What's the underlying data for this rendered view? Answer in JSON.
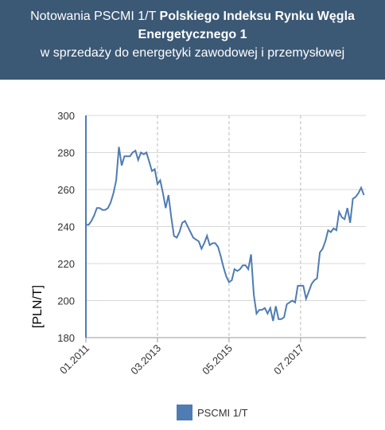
{
  "header": {
    "title_prefix": "Notowania PSCMI 1/T",
    "title_bold": "Polskiego Indeksu Rynku Węgla Energetycznego 1",
    "subtitle": "w sprzedaży do energetyki zawodowej i przemysłowej"
  },
  "chart_data": {
    "type": "line",
    "y_label": "[PLN/T]",
    "x": [
      "01.2011",
      "02.2011",
      "03.2011",
      "04.2011",
      "05.2011",
      "06.2011",
      "07.2011",
      "08.2011",
      "09.2011",
      "10.2011",
      "11.2011",
      "12.2011",
      "01.2012",
      "02.2012",
      "03.2012",
      "04.2012",
      "05.2012",
      "06.2012",
      "07.2012",
      "08.2012",
      "09.2012",
      "10.2012",
      "11.2012",
      "12.2012",
      "01.2013",
      "02.2013",
      "03.2013",
      "04.2013",
      "05.2013",
      "06.2013",
      "07.2013",
      "08.2013",
      "09.2013",
      "10.2013",
      "11.2013",
      "12.2013",
      "01.2014",
      "02.2014",
      "03.2014",
      "04.2014",
      "05.2014",
      "06.2014",
      "07.2014",
      "08.2014",
      "09.2014",
      "10.2014",
      "11.2014",
      "12.2014",
      "01.2015",
      "02.2015",
      "03.2015",
      "04.2015",
      "05.2015",
      "06.2015",
      "07.2015",
      "08.2015",
      "09.2015",
      "10.2015",
      "11.2015",
      "12.2015",
      "01.2016",
      "02.2016",
      "03.2016",
      "04.2016",
      "05.2016",
      "06.2016",
      "07.2016",
      "08.2016",
      "09.2016",
      "10.2016",
      "11.2016",
      "12.2016",
      "01.2017",
      "02.2017",
      "03.2017",
      "04.2017",
      "05.2017",
      "06.2017",
      "07.2017",
      "08.2017",
      "09.2017",
      "10.2017",
      "11.2017",
      "12.2017",
      "01.2018",
      "02.2018",
      "03.2018",
      "04.2018",
      "05.2018",
      "06.2018",
      "07.2018",
      "08.2018",
      "09.2018",
      "10.2018",
      "11.2018",
      "12.2018",
      "01.2019",
      "02.2019",
      "03.2019",
      "04.2019",
      "05.2019",
      "06.2019"
    ],
    "series": [
      {
        "name": "PSCMI 1/T",
        "color": "#4f7cb2",
        "values": [
          241,
          241,
          243,
          246,
          250,
          250,
          249,
          249,
          250,
          253,
          258,
          265,
          283,
          273,
          278,
          278,
          278,
          280,
          281,
          276,
          280,
          279,
          280,
          275,
          270,
          271,
          263,
          265,
          258,
          250,
          257,
          245,
          235,
          234,
          237,
          242,
          243,
          240,
          237,
          234,
          233,
          232,
          228,
          231,
          235,
          230,
          231,
          231,
          229,
          224,
          218,
          213,
          210,
          211,
          217,
          216,
          217,
          219,
          219,
          217,
          225,
          203,
          193,
          195,
          195,
          196,
          193,
          196,
          189,
          197,
          190,
          190,
          191,
          198,
          199,
          200,
          199,
          208,
          208,
          208,
          201,
          205,
          209,
          211,
          212,
          226,
          228,
          232,
          238,
          237,
          239,
          238,
          248,
          245,
          244,
          250,
          242,
          255,
          256,
          258,
          261,
          257
        ]
      }
    ],
    "ylim": [
      180,
      300
    ],
    "yticks": [
      180,
      200,
      220,
      240,
      260,
      280,
      300
    ],
    "xticks": [
      "01.2011",
      "03.2013",
      "05.2015",
      "07.2017"
    ],
    "grid": true
  }
}
